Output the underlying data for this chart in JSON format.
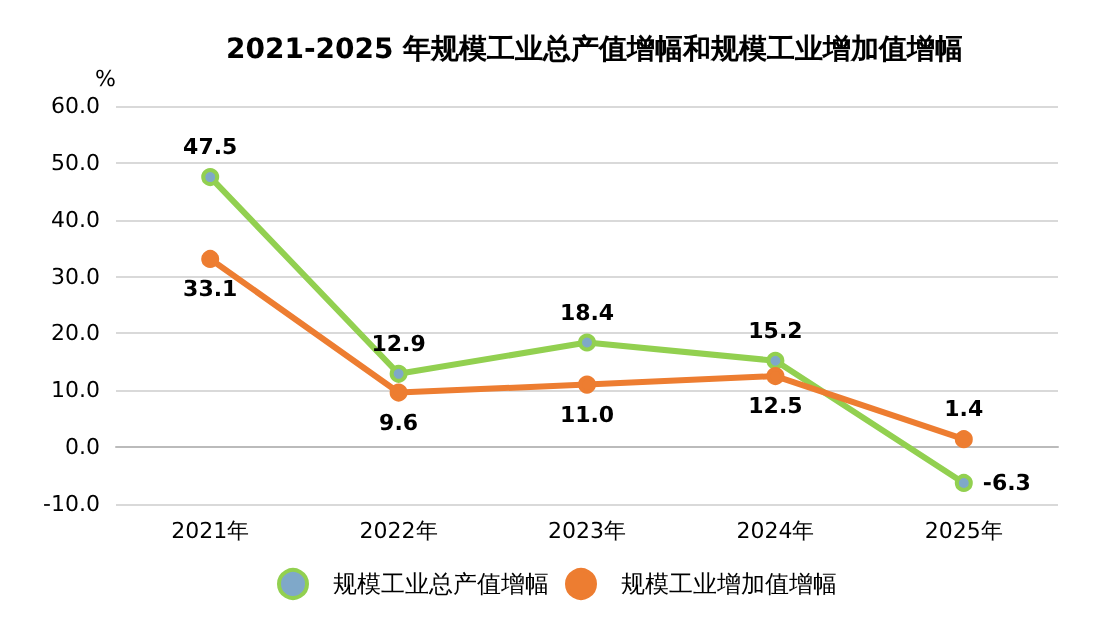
{
  "chart_data": {
    "type": "line",
    "title": "2021-2025 年规模工业总产值增幅和规模工业增加值增幅",
    "ylabel": "%",
    "categories": [
      "2021年",
      "2022年",
      "2023年",
      "2024年",
      "2025年"
    ],
    "series": [
      {
        "name": "规模工业总产值增幅",
        "color": "#92d050",
        "values": [
          47.5,
          12.9,
          18.4,
          15.2,
          -6.3
        ],
        "value_labels": [
          "47.5",
          "12.9",
          "18.4",
          "15.2",
          "-6.3"
        ]
      },
      {
        "name": "规模工业增加值增幅",
        "color": "#ed7d31",
        "values": [
          33.1,
          9.6,
          11.0,
          12.5,
          1.4
        ],
        "value_labels": [
          "33.1",
          "9.6",
          "11.0",
          "12.5",
          "1.4"
        ]
      }
    ],
    "ylim": [
      -10,
      60
    ],
    "yticks": [
      {
        "value": -10,
        "label": "-10.0"
      },
      {
        "value": 0,
        "label": "0.0"
      },
      {
        "value": 10,
        "label": "10.0"
      },
      {
        "value": 20,
        "label": "20.0"
      },
      {
        "value": 30,
        "label": "30.0"
      },
      {
        "value": 40,
        "label": "40.0"
      },
      {
        "value": 50,
        "label": "50.0"
      },
      {
        "value": 60,
        "label": "60.0"
      }
    ],
    "grid": "y",
    "legend": "bottom",
    "marker": "circle",
    "line_style": "solid"
  }
}
